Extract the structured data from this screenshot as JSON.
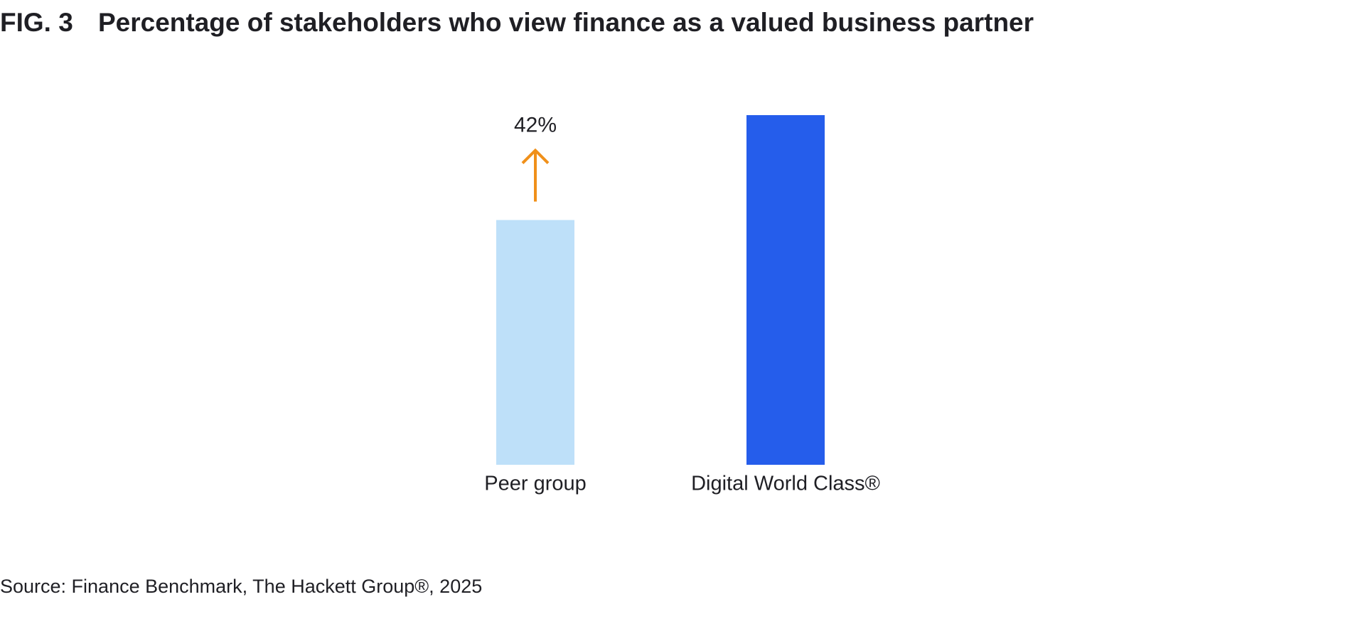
{
  "chart_data": {
    "type": "bar",
    "figure_label": "FIG. 3",
    "title": "Percentage of stakeholders who view finance as a valued business partner",
    "categories": [
      "Peer group",
      "Digital World Class®"
    ],
    "values": [
      49,
      70
    ],
    "colors": [
      "#bee0f9",
      "#255deb"
    ],
    "annotation": "42%",
    "annotation_color": "#f0901a",
    "source": "Source: Finance Benchmark, The Hackett Group®, 2025"
  }
}
